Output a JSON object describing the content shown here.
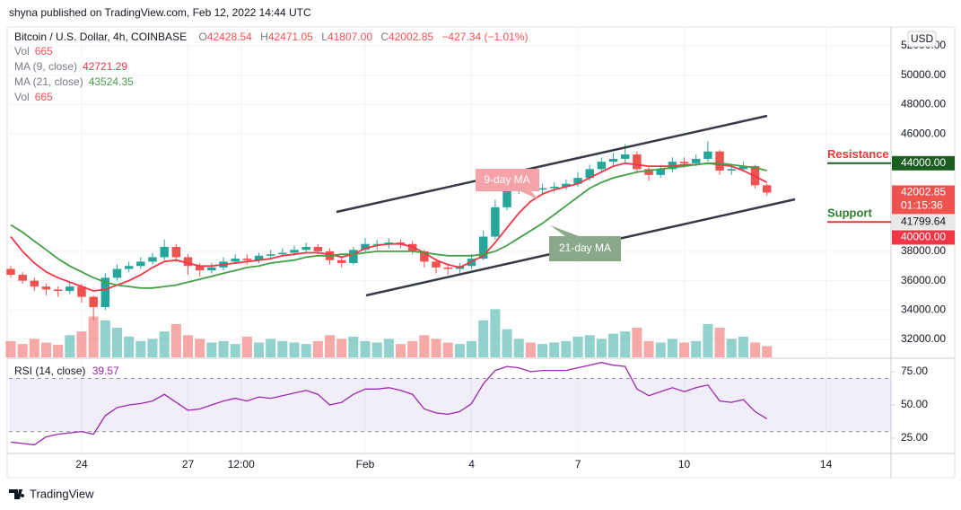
{
  "header": {
    "publisher": "shyna published on TradingView.com, Feb 12, 2022 14:44 UTC",
    "brand": "TradingView"
  },
  "chart_data": {
    "type": "candlestick",
    "title": "Bitcoin / U.S. Dollar, 4h, COINBASE",
    "currency": "USD",
    "ohlc_legend": [
      {
        "label": "O",
        "value": "42428.54"
      },
      {
        "label": "H",
        "value": "42471.05"
      },
      {
        "label": "L",
        "value": "41807.00"
      },
      {
        "label": "C",
        "value": "42002.85"
      }
    ],
    "change": "−427.34 (−1.01%)",
    "indicators": [
      {
        "name": "Vol",
        "value": "665",
        "color": "#ef5350"
      },
      {
        "name": "MA (9, close)",
        "value": "42721.29",
        "color": "#f23645"
      },
      {
        "name": "MA (21, close)",
        "value": "43524.35",
        "color": "#43a047"
      },
      {
        "name": "Vol",
        "value": "665",
        "color": "#ef5350"
      }
    ],
    "up_color": "#26a69a",
    "down_color": "#ef5350",
    "open": [
      36800,
      36400,
      36000,
      35600,
      35400,
      35300,
      35600,
      34900,
      34200,
      36200,
      36800,
      37000,
      37300,
      37600,
      38300,
      37600,
      37000,
      36700,
      36900,
      37300,
      37500,
      37400,
      37700,
      37800,
      37900,
      38100,
      38300,
      38000,
      37400,
      37200,
      38100,
      38500,
      38500,
      38600,
      38500,
      38000,
      37300,
      36900,
      36800,
      37000,
      37500,
      39000,
      41000,
      42100,
      42400,
      42200,
      42300,
      42400,
      42600,
      43000,
      43600,
      44100,
      44300,
      44600,
      43600,
      43200,
      43600,
      44100,
      44000,
      44300,
      44800,
      43500,
      43600,
      43800,
      42500
    ],
    "high": [
      37000,
      36600,
      36200,
      35800,
      35600,
      35900,
      35800,
      35000,
      36500,
      37100,
      37300,
      37600,
      37900,
      38800,
      38500,
      37800,
      37200,
      37200,
      37600,
      37800,
      37800,
      37900,
      38100,
      38200,
      38400,
      38600,
      38500,
      38200,
      37600,
      38300,
      38900,
      38800,
      38900,
      38800,
      38700,
      38100,
      37500,
      37100,
      37200,
      37800,
      39400,
      41500,
      42500,
      42800,
      42700,
      42600,
      42700,
      42900,
      43400,
      43900,
      44400,
      44700,
      45300,
      44800,
      43800,
      43900,
      44400,
      44400,
      44600,
      45500,
      44900,
      43900,
      44100,
      43900,
      42600
    ],
    "low": [
      36200,
      35800,
      35300,
      35000,
      34900,
      35100,
      34500,
      33300,
      34000,
      36000,
      36600,
      36800,
      37100,
      37400,
      37300,
      36400,
      36300,
      36500,
      36700,
      37100,
      37100,
      37200,
      37500,
      37600,
      37700,
      37900,
      37800,
      37100,
      36900,
      37100,
      37900,
      38100,
      38200,
      38200,
      37800,
      36900,
      36500,
      36400,
      36500,
      36800,
      37400,
      38800,
      40800,
      41900,
      41800,
      41900,
      42000,
      42200,
      42400,
      42800,
      43400,
      43800,
      44000,
      43300,
      42800,
      43000,
      43400,
      43700,
      43800,
      44100,
      43200,
      43200,
      43400,
      42300,
      41800
    ],
    "close": [
      36400,
      36000,
      35600,
      35400,
      35300,
      35600,
      34900,
      34200,
      36200,
      36800,
      37000,
      37300,
      37600,
      38300,
      37600,
      37000,
      36700,
      36900,
      37300,
      37500,
      37400,
      37700,
      37800,
      37900,
      38100,
      38300,
      38000,
      37400,
      37200,
      38100,
      38500,
      38500,
      38600,
      38500,
      38000,
      37300,
      36900,
      36800,
      37000,
      37500,
      39000,
      41000,
      42100,
      42400,
      42200,
      42300,
      42400,
      42600,
      43000,
      43600,
      44100,
      44300,
      44600,
      43600,
      43200,
      43600,
      44100,
      44000,
      44300,
      44800,
      43500,
      43600,
      43800,
      42500,
      42000
    ],
    "volume": [
      968,
      792,
      1100,
      880,
      748,
      1320,
      1540,
      2420,
      2200,
      1760,
      1232,
      968,
      1100,
      1540,
      1980,
      1320,
      1100,
      880,
      968,
      792,
      1232,
      880,
      1100,
      968,
      880,
      792,
      968,
      1320,
      1100,
      1232,
      968,
      880,
      1100,
      792,
      968,
      1320,
      1100,
      880,
      792,
      968,
      2200,
      2860,
      1672,
      1100,
      880,
      792,
      880,
      968,
      1232,
      1320,
      1100,
      1408,
      1540,
      1760,
      968,
      880,
      1100,
      880,
      968,
      1980,
      1760,
      1100,
      1232,
      880,
      665
    ],
    "volume_lim": [
      0,
      3200
    ],
    "ma9": {
      "color": "#f23645",
      "values": [
        39000,
        38000,
        37200,
        36600,
        36200,
        35900,
        35600,
        35300,
        35400,
        35700,
        36000,
        36400,
        36900,
        37300,
        37400,
        37200,
        37000,
        37000,
        37100,
        37200,
        37300,
        37400,
        37500,
        37700,
        37800,
        37900,
        37900,
        37800,
        37600,
        37800,
        38200,
        38400,
        38500,
        38500,
        38300,
        37900,
        37400,
        37100,
        36900,
        37300,
        37700,
        38600,
        39600,
        40600,
        41400,
        41900,
        42200,
        42400,
        42600,
        43000,
        43400,
        43800,
        44000,
        43900,
        43800,
        43800,
        43800,
        43900,
        43900,
        44000,
        43900,
        43800,
        43500,
        43100,
        42700
      ]
    },
    "ma21": {
      "color": "#43a047",
      "values": [
        39800,
        39300,
        38700,
        38100,
        37500,
        37000,
        36600,
        36200,
        35900,
        35700,
        35600,
        35500,
        35500,
        35600,
        35700,
        35900,
        36100,
        36300,
        36500,
        36700,
        36900,
        37000,
        37200,
        37300,
        37400,
        37600,
        37700,
        37700,
        37800,
        37800,
        37900,
        38000,
        38000,
        38000,
        38000,
        37900,
        37800,
        37700,
        37700,
        37700,
        37800,
        38000,
        38400,
        38900,
        39400,
        39900,
        40500,
        41100,
        41700,
        42300,
        42700,
        43000,
        43200,
        43400,
        43500,
        43600,
        43700,
        43800,
        43900,
        44000,
        44000,
        43900,
        43800,
        43700,
        43500
      ]
    },
    "xlim": [
      -0.15,
      74.5
    ],
    "xticks": [
      {
        "value": 6,
        "label": "24"
      },
      {
        "value": 15,
        "label": "27"
      },
      {
        "value": 19.5,
        "label": "12:00"
      },
      {
        "value": 30,
        "label": "Feb"
      },
      {
        "value": 39,
        "label": "4"
      },
      {
        "value": 48,
        "label": "7"
      },
      {
        "value": 57,
        "label": "10"
      },
      {
        "value": 69,
        "label": "14"
      }
    ],
    "ylim": [
      30777,
      53284
    ],
    "yticks": [
      {
        "value": 32000,
        "label": "32000.00"
      },
      {
        "value": 34000,
        "label": "34000.00"
      },
      {
        "value": 36000,
        "label": "36000.00"
      },
      {
        "value": 38000,
        "label": "38000.00"
      },
      {
        "value": 46000,
        "label": "46000.00"
      },
      {
        "value": 48000,
        "label": "48000.00"
      },
      {
        "value": 50000,
        "label": "50000.00"
      },
      {
        "value": 52000,
        "label": "52000.00"
      }
    ],
    "price_labels": [
      {
        "value": 44000,
        "label": "44000.00",
        "color": "#1b5e20",
        "text_color": "#ffffff"
      },
      {
        "value": 42002.85,
        "label": "42002.85",
        "sublabel": "01:15:36",
        "color": "#ef5350",
        "text_color": "#ffffff"
      },
      {
        "value": 41799.64,
        "label": "41799.64",
        "color": "#e8e8e8",
        "text_color": "#131722"
      },
      {
        "value": 40000,
        "label": "40000.00",
        "color": "#f23645",
        "text_color": "#ffffff"
      }
    ],
    "levels": [
      {
        "label": "Resistance",
        "value": 44000,
        "line_color": "#1b5e20",
        "text_color": "#e53935"
      },
      {
        "label": "Support",
        "value": 40000,
        "line_color": "#e53935",
        "text_color": "#2e7d32"
      }
    ],
    "annotations": [
      {
        "text": "9-day MA",
        "color": "#f4a3a8"
      },
      {
        "text": "21-day MA",
        "color": "#8aa98a"
      }
    ],
    "rsi": {
      "name": "RSI (14, close)",
      "value_label": "39.57",
      "color": "#9c27b0",
      "values": [
        22,
        21,
        20,
        26,
        28,
        29,
        30,
        28,
        42,
        48,
        50,
        51,
        53,
        58,
        52,
        46,
        47,
        50,
        53,
        55,
        53,
        56,
        55,
        57,
        59,
        61,
        58,
        50,
        52,
        58,
        62,
        62,
        63,
        61,
        58,
        47,
        44,
        43,
        45,
        51,
        66,
        76,
        79,
        78,
        75,
        76,
        76,
        76,
        78,
        80,
        82,
        80,
        79,
        62,
        57,
        60,
        63,
        60,
        63,
        65,
        53,
        52,
        54,
        45,
        39.57
      ],
      "ylim": [
        13.5,
        84.5
      ],
      "yticks": [
        {
          "value": 25,
          "label": "25.00"
        },
        {
          "value": 50,
          "label": "50.00"
        },
        {
          "value": 75,
          "label": "75.00"
        }
      ],
      "band": [
        30,
        70
      ],
      "band_color": "rgba(126,87,194,0.10)"
    }
  }
}
